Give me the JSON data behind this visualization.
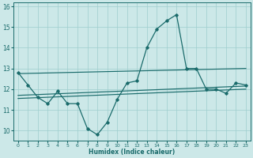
{
  "xlabel": "Humidex (Indice chaleur)",
  "background_color": "#cce8e8",
  "grid_color": "#9ecece",
  "line_color": "#1a6b6b",
  "xlim": [
    -0.5,
    23.5
  ],
  "ylim": [
    9.5,
    16.2
  ],
  "yticks": [
    10,
    11,
    12,
    13,
    14,
    15,
    16
  ],
  "xticks": [
    0,
    1,
    2,
    3,
    4,
    5,
    6,
    7,
    8,
    9,
    10,
    11,
    12,
    13,
    14,
    15,
    16,
    17,
    18,
    19,
    20,
    21,
    22,
    23
  ],
  "series": [
    12.8,
    12.2,
    11.6,
    11.3,
    11.9,
    11.3,
    11.3,
    10.1,
    9.8,
    10.4,
    11.5,
    12.3,
    12.4,
    14.0,
    14.9,
    15.3,
    15.6,
    13.0,
    13.0,
    12.0,
    12.0,
    11.8,
    12.3,
    12.2
  ],
  "regression_lines": [
    {
      "x0": 0,
      "y0": 12.75,
      "x1": 23,
      "y1": 13.0
    },
    {
      "x0": 0,
      "y0": 11.7,
      "x1": 23,
      "y1": 12.15
    },
    {
      "x0": 0,
      "y0": 11.55,
      "x1": 23,
      "y1": 12.0
    }
  ]
}
